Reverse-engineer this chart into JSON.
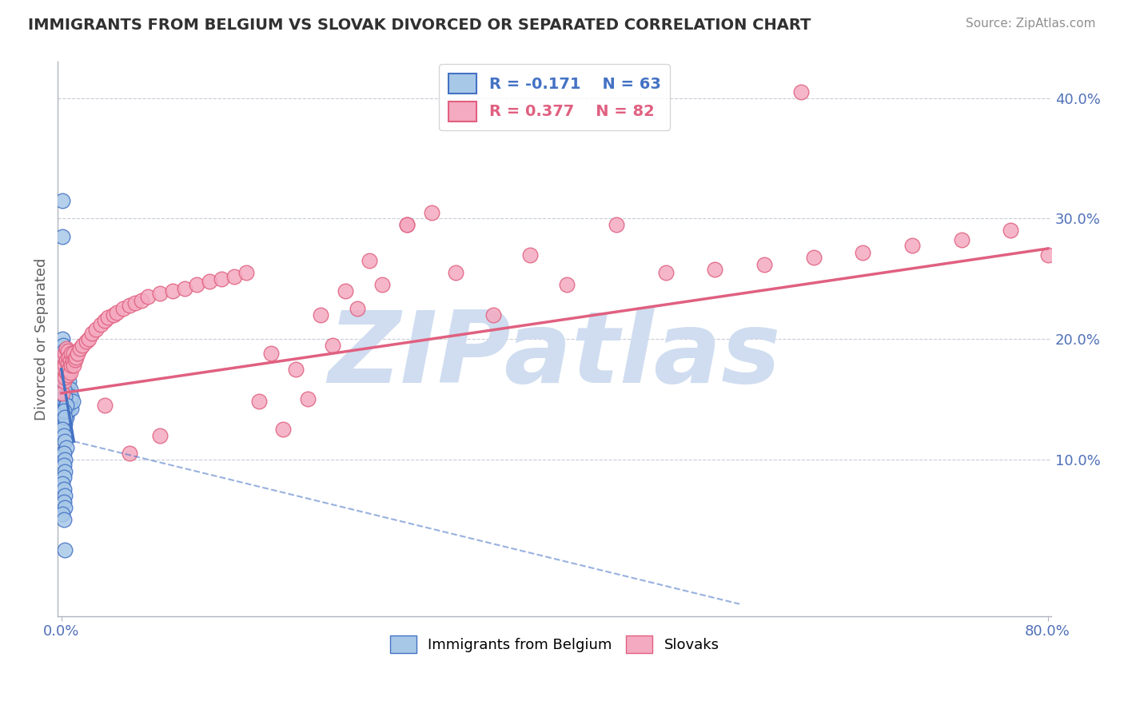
{
  "title": "IMMIGRANTS FROM BELGIUM VS SLOVAK DIVORCED OR SEPARATED CORRELATION CHART",
  "source": "Source: ZipAtlas.com",
  "ylabel": "Divorced or Separated",
  "xlim": [
    -0.003,
    0.803
  ],
  "ylim": [
    -0.03,
    0.43
  ],
  "color_belgium": "#a8c8e8",
  "color_slovak": "#f4aac0",
  "color_line_belgium": "#4472c4",
  "color_line_slovak": "#e06080",
  "color_title": "#303030",
  "color_source": "#909090",
  "color_watermark": "#d0ddf0",
  "watermark_text": "ZIPatlas",
  "legend_r1": "R = -0.171",
  "legend_n1": "N = 63",
  "legend_r2": "R = 0.377",
  "legend_n2": "N = 82",
  "belgium_x": [
    0.0005,
    0.001,
    0.001,
    0.001,
    0.001,
    0.0015,
    0.0015,
    0.002,
    0.002,
    0.002,
    0.002,
    0.002,
    0.002,
    0.002,
    0.002,
    0.003,
    0.003,
    0.003,
    0.003,
    0.003,
    0.003,
    0.003,
    0.003,
    0.004,
    0.004,
    0.004,
    0.004,
    0.004,
    0.005,
    0.005,
    0.005,
    0.005,
    0.006,
    0.006,
    0.006,
    0.007,
    0.007,
    0.008,
    0.008,
    0.009,
    0.001,
    0.002,
    0.003,
    0.004,
    0.002,
    0.003,
    0.001,
    0.002,
    0.003,
    0.004,
    0.002,
    0.003,
    0.002,
    0.003,
    0.002,
    0.001,
    0.002,
    0.003,
    0.002,
    0.003,
    0.001,
    0.002,
    0.003
  ],
  "belgium_y": [
    0.315,
    0.285,
    0.2,
    0.155,
    0.105,
    0.195,
    0.145,
    0.19,
    0.175,
    0.165,
    0.16,
    0.155,
    0.148,
    0.14,
    0.13,
    0.185,
    0.178,
    0.17,
    0.162,
    0.155,
    0.148,
    0.14,
    0.13,
    0.175,
    0.165,
    0.155,
    0.145,
    0.135,
    0.17,
    0.16,
    0.15,
    0.14,
    0.165,
    0.155,
    0.145,
    0.158,
    0.148,
    0.152,
    0.142,
    0.148,
    0.165,
    0.158,
    0.152,
    0.145,
    0.14,
    0.135,
    0.125,
    0.12,
    0.115,
    0.11,
    0.105,
    0.1,
    0.095,
    0.09,
    0.085,
    0.08,
    0.075,
    0.07,
    0.065,
    0.06,
    0.055,
    0.05,
    0.025
  ],
  "slovak_x": [
    0.001,
    0.001,
    0.002,
    0.002,
    0.002,
    0.003,
    0.003,
    0.003,
    0.004,
    0.004,
    0.004,
    0.005,
    0.005,
    0.005,
    0.006,
    0.006,
    0.007,
    0.007,
    0.008,
    0.008,
    0.009,
    0.01,
    0.01,
    0.011,
    0.012,
    0.013,
    0.015,
    0.017,
    0.02,
    0.022,
    0.025,
    0.028,
    0.032,
    0.035,
    0.038,
    0.042,
    0.045,
    0.05,
    0.055,
    0.06,
    0.065,
    0.07,
    0.08,
    0.09,
    0.1,
    0.11,
    0.12,
    0.13,
    0.14,
    0.15,
    0.16,
    0.17,
    0.18,
    0.19,
    0.2,
    0.21,
    0.22,
    0.23,
    0.24,
    0.25,
    0.26,
    0.28,
    0.3,
    0.32,
    0.35,
    0.38,
    0.41,
    0.45,
    0.49,
    0.53,
    0.57,
    0.61,
    0.65,
    0.69,
    0.73,
    0.77,
    0.8,
    0.035,
    0.055,
    0.08,
    0.28,
    0.6
  ],
  "slovak_y": [
    0.155,
    0.175,
    0.165,
    0.175,
    0.185,
    0.168,
    0.178,
    0.188,
    0.172,
    0.182,
    0.192,
    0.17,
    0.18,
    0.19,
    0.175,
    0.185,
    0.172,
    0.182,
    0.178,
    0.188,
    0.182,
    0.178,
    0.188,
    0.183,
    0.185,
    0.188,
    0.192,
    0.195,
    0.198,
    0.2,
    0.205,
    0.208,
    0.212,
    0.215,
    0.218,
    0.22,
    0.222,
    0.225,
    0.228,
    0.23,
    0.232,
    0.235,
    0.238,
    0.24,
    0.242,
    0.245,
    0.248,
    0.25,
    0.252,
    0.255,
    0.148,
    0.188,
    0.125,
    0.175,
    0.15,
    0.22,
    0.195,
    0.24,
    0.225,
    0.265,
    0.245,
    0.295,
    0.305,
    0.255,
    0.22,
    0.27,
    0.245,
    0.295,
    0.255,
    0.258,
    0.262,
    0.268,
    0.272,
    0.278,
    0.282,
    0.29,
    0.27,
    0.145,
    0.105,
    0.12,
    0.295,
    0.405
  ],
  "trend_belgium_x0": 0.0,
  "trend_belgium_y0": 0.175,
  "trend_belgium_x1": 0.01,
  "trend_belgium_y1": 0.115,
  "trend_dashed_x1": 0.55,
  "trend_dashed_y1": -0.02,
  "trend_slovak_x0": 0.0,
  "trend_slovak_y0": 0.155,
  "trend_slovak_x1": 0.8,
  "trend_slovak_y1": 0.275
}
